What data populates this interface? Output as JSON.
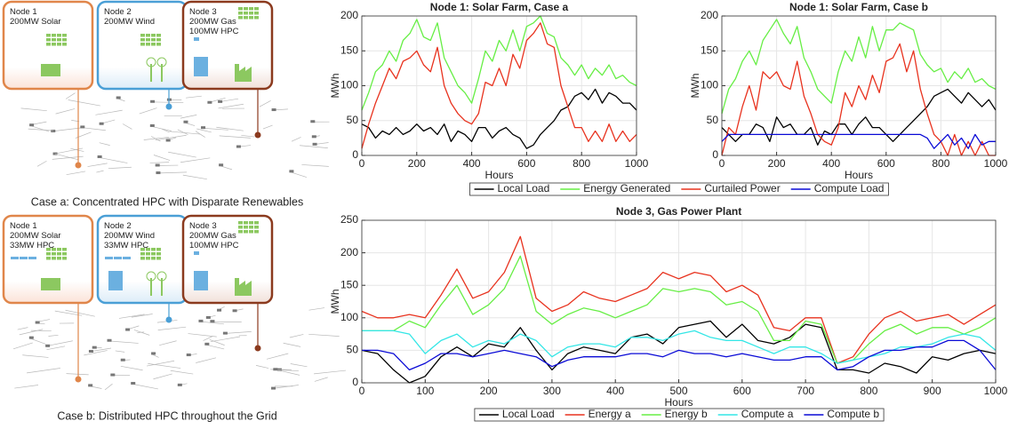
{
  "diagrams": [
    {
      "nodes": [
        {
          "lines": [
            "Node 1",
            "200MW Solar"
          ]
        },
        {
          "lines": [
            "Node 2",
            "200MW Wind"
          ]
        },
        {
          "lines": [
            "Node 3",
            "200MW Gas",
            "100MW HPC"
          ]
        }
      ],
      "caption": "Case a: Concentrated HPC with Disparate Renewables"
    },
    {
      "nodes": [
        {
          "lines": [
            "Node 1",
            "200MW Solar",
            "33MW HPC"
          ]
        },
        {
          "lines": [
            "Node 2",
            "200MW Wind",
            "33MW HPC"
          ]
        },
        {
          "lines": [
            "Node 3",
            "200MW Gas",
            "100MW HPC"
          ]
        }
      ],
      "caption": "Case b: Distributed HPC throughout the Grid"
    }
  ],
  "chart_data": [
    {
      "type": "line",
      "title": "Node 1: Solar Farm, Case a",
      "xlabel": "Hours",
      "ylabel": "MWh",
      "grid": true,
      "x": [
        0,
        25,
        50,
        75,
        100,
        125,
        150,
        175,
        200,
        225,
        250,
        275,
        300,
        325,
        350,
        375,
        400,
        425,
        450,
        475,
        500,
        525,
        550,
        575,
        600,
        625,
        650,
        675,
        700,
        725,
        750,
        775,
        800,
        825,
        850,
        875,
        900,
        925,
        950,
        975,
        1000
      ],
      "xlim": [
        0,
        1000
      ],
      "xticks": [
        0,
        200,
        400,
        600,
        800,
        1000
      ],
      "ylim": [
        0,
        200
      ],
      "yticks": [
        0,
        50,
        100,
        150,
        200
      ],
      "series": [
        {
          "color": "#000000",
          "values": [
            45,
            40,
            25,
            35,
            30,
            40,
            30,
            35,
            45,
            35,
            40,
            30,
            45,
            20,
            35,
            30,
            20,
            40,
            40,
            25,
            35,
            40,
            30,
            25,
            10,
            15,
            30,
            40,
            50,
            65,
            70,
            85,
            90,
            80,
            95,
            75,
            90,
            85,
            75,
            75,
            65
          ]
        },
        {
          "color": "#66ee44",
          "values": [
            65,
            90,
            120,
            130,
            150,
            135,
            165,
            175,
            195,
            170,
            165,
            190,
            140,
            120,
            100,
            90,
            75,
            110,
            150,
            135,
            165,
            150,
            180,
            150,
            185,
            190,
            200,
            175,
            170,
            140,
            130,
            115,
            130,
            110,
            125,
            115,
            130,
            110,
            115,
            105,
            100
          ]
        },
        {
          "color": "#e8321e",
          "values": [
            10,
            45,
            75,
            100,
            125,
            110,
            135,
            140,
            150,
            130,
            120,
            155,
            100,
            75,
            60,
            50,
            45,
            60,
            105,
            100,
            125,
            100,
            145,
            125,
            165,
            175,
            190,
            160,
            155,
            100,
            70,
            40,
            40,
            20,
            35,
            20,
            45,
            20,
            35,
            20,
            30
          ]
        }
      ]
    },
    {
      "type": "line",
      "title": "Node 1: Solar Farm, Case b",
      "xlabel": "Hours",
      "ylabel": "MWh",
      "grid": true,
      "legend": "bottom",
      "x": [
        0,
        25,
        50,
        75,
        100,
        125,
        150,
        175,
        200,
        225,
        250,
        275,
        300,
        325,
        350,
        375,
        400,
        425,
        450,
        475,
        500,
        525,
        550,
        575,
        600,
        625,
        650,
        675,
        700,
        725,
        750,
        775,
        800,
        825,
        850,
        875,
        900,
        925,
        950,
        975,
        1000
      ],
      "xlim": [
        0,
        1000
      ],
      "xticks": [
        0,
        200,
        400,
        600,
        800,
        1000
      ],
      "ylim": [
        0,
        200
      ],
      "yticks": [
        0,
        50,
        100,
        150,
        200
      ],
      "series": [
        {
          "name": "Local Load",
          "color": "#000000",
          "values": [
            40,
            30,
            20,
            30,
            30,
            45,
            40,
            20,
            55,
            40,
            45,
            30,
            30,
            40,
            15,
            35,
            30,
            45,
            45,
            30,
            45,
            55,
            40,
            40,
            30,
            20,
            30,
            40,
            50,
            60,
            70,
            85,
            90,
            95,
            85,
            75,
            90,
            80,
            70,
            80,
            65
          ]
        },
        {
          "name": "Energy Generated",
          "color": "#66ee44",
          "values": [
            60,
            95,
            110,
            135,
            150,
            130,
            165,
            180,
            195,
            175,
            160,
            185,
            140,
            120,
            95,
            85,
            75,
            120,
            150,
            135,
            170,
            140,
            185,
            150,
            180,
            180,
            190,
            185,
            180,
            145,
            130,
            120,
            125,
            105,
            120,
            110,
            125,
            105,
            110,
            100,
            95
          ]
        },
        {
          "name": "Curtailed Power",
          "color": "#e8321e",
          "values": [
            0,
            40,
            30,
            70,
            100,
            65,
            120,
            110,
            120,
            100,
            95,
            135,
            85,
            60,
            30,
            20,
            15,
            40,
            90,
            70,
            100,
            80,
            115,
            90,
            135,
            140,
            160,
            120,
            150,
            95,
            60,
            30,
            20,
            0,
            30,
            0,
            20,
            0,
            20,
            0,
            0
          ]
        },
        {
          "name": "Compute Load",
          "color": "#0a0ad6",
          "values": [
            20,
            30,
            30,
            30,
            30,
            30,
            30,
            30,
            30,
            30,
            30,
            30,
            30,
            30,
            30,
            30,
            30,
            30,
            30,
            30,
            30,
            30,
            30,
            30,
            30,
            30,
            30,
            30,
            30,
            30,
            25,
            10,
            20,
            30,
            15,
            25,
            10,
            30,
            15,
            20,
            20
          ]
        }
      ]
    },
    {
      "type": "line",
      "title": "Node 3, Gas Power Plant",
      "xlabel": "Hours",
      "ylabel": "MWh",
      "grid": true,
      "legend": "bottom",
      "x": [
        0,
        25,
        50,
        75,
        100,
        125,
        150,
        175,
        200,
        225,
        250,
        275,
        300,
        325,
        350,
        375,
        400,
        425,
        450,
        475,
        500,
        525,
        550,
        575,
        600,
        625,
        650,
        675,
        700,
        725,
        750,
        775,
        800,
        825,
        850,
        875,
        900,
        925,
        950,
        975,
        1000
      ],
      "xlim": [
        0,
        1000
      ],
      "xticks": [
        0,
        100,
        200,
        300,
        400,
        500,
        600,
        700,
        800,
        900,
        1000
      ],
      "ylim": [
        0,
        250
      ],
      "yticks": [
        0,
        50,
        100,
        150,
        200,
        250
      ],
      "series": [
        {
          "name": "Local Load",
          "color": "#000000",
          "values": [
            50,
            45,
            20,
            0,
            10,
            40,
            55,
            40,
            60,
            55,
            85,
            50,
            20,
            45,
            55,
            50,
            45,
            70,
            75,
            60,
            85,
            90,
            95,
            70,
            90,
            65,
            60,
            70,
            90,
            85,
            20,
            20,
            15,
            30,
            25,
            15,
            40,
            35,
            45,
            50,
            45
          ]
        },
        {
          "name": "Energy a",
          "color": "#e8321e",
          "values": [
            110,
            100,
            100,
            105,
            100,
            135,
            175,
            130,
            140,
            170,
            225,
            130,
            110,
            120,
            140,
            130,
            125,
            135,
            145,
            170,
            160,
            170,
            165,
            140,
            150,
            135,
            85,
            80,
            100,
            100,
            30,
            40,
            75,
            100,
            110,
            95,
            100,
            105,
            90,
            105,
            120
          ]
        },
        {
          "name": "Energy b",
          "color": "#66ee44",
          "values": [
            80,
            80,
            80,
            95,
            85,
            120,
            150,
            105,
            120,
            145,
            195,
            110,
            90,
            105,
            115,
            110,
            100,
            110,
            120,
            145,
            140,
            145,
            140,
            120,
            125,
            110,
            65,
            65,
            95,
            90,
            30,
            35,
            60,
            80,
            90,
            75,
            85,
            85,
            75,
            85,
            100
          ]
        },
        {
          "name": "Compute a",
          "color": "#33e6e6",
          "values": [
            80,
            80,
            80,
            75,
            45,
            65,
            75,
            55,
            65,
            60,
            75,
            65,
            40,
            55,
            60,
            60,
            55,
            70,
            70,
            65,
            75,
            80,
            70,
            65,
            65,
            55,
            45,
            55,
            55,
            45,
            30,
            35,
            40,
            45,
            55,
            55,
            60,
            70,
            75,
            70,
            50
          ]
        },
        {
          "name": "Compute b",
          "color": "#0a0ad6",
          "values": [
            50,
            50,
            45,
            20,
            30,
            45,
            45,
            40,
            45,
            50,
            45,
            40,
            25,
            35,
            40,
            40,
            40,
            45,
            45,
            40,
            50,
            45,
            45,
            40,
            45,
            40,
            35,
            35,
            40,
            40,
            20,
            25,
            40,
            50,
            50,
            55,
            55,
            65,
            65,
            50,
            20
          ]
        }
      ]
    }
  ]
}
